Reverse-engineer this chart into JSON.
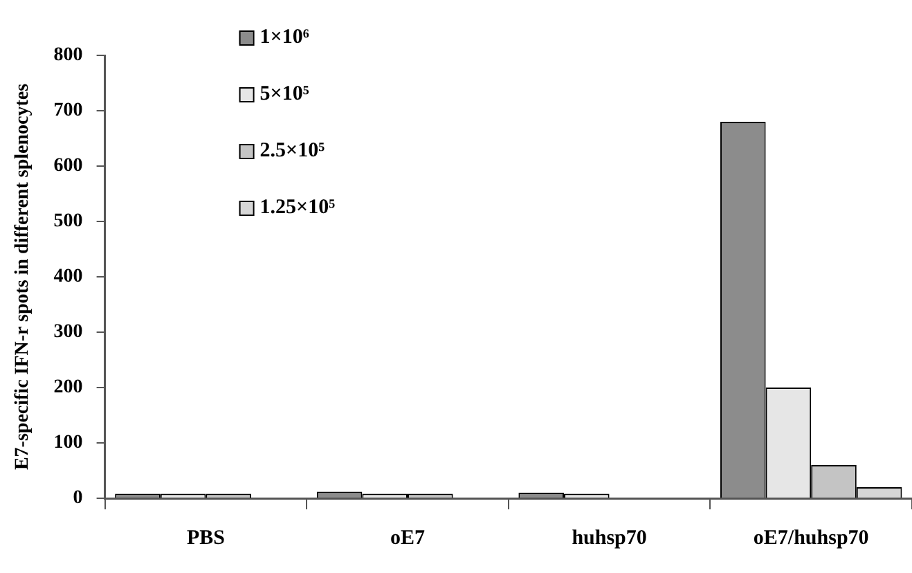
{
  "chart_data": {
    "type": "bar",
    "ylabel": "E7-specific IFN-r spots in different splenocytes",
    "categories": [
      "PBS",
      "oE7",
      "huhsp70",
      "oE7/huhsp70"
    ],
    "series": [
      {
        "name": "1×10⁶",
        "color": "#8c8c8c",
        "values": [
          8,
          12,
          10,
          680
        ]
      },
      {
        "name": "5×10⁵",
        "color": "#e6e6e6",
        "values": [
          8,
          8,
          8,
          200
        ]
      },
      {
        "name": "2.5×10⁵",
        "color": "#c4c4c4",
        "values": [
          8,
          8,
          null,
          60
        ]
      },
      {
        "name": "1.25×10⁵",
        "color": "#d6d6d6",
        "values": [
          null,
          null,
          null,
          20
        ]
      }
    ],
    "ylim": [
      0,
      800
    ],
    "yticks": [
      0,
      100,
      200,
      300,
      400,
      500,
      600,
      700,
      800
    ],
    "grid": false,
    "legend": "top left"
  }
}
